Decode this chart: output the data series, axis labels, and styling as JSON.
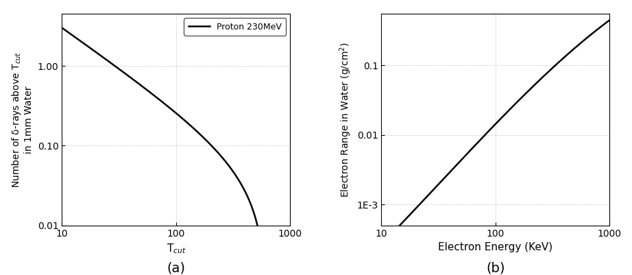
{
  "panel_a": {
    "xlabel": "T$_{cut}$",
    "ylabel": "Number of δ-rays above T$_{cut}$\nin 1mm Water",
    "legend_label": "Proton 230MeV",
    "xlim": [
      10,
      1000
    ],
    "ylim": [
      0.01,
      4.5
    ],
    "grid_color": "#aaaaaa",
    "line_color": "#000000",
    "line_width": 1.8,
    "caption": "(a)",
    "T_max_keV": 500.0,
    "C": 24.5
  },
  "panel_b": {
    "xlabel": "Electron Energy (KeV)",
    "ylabel": "Electron Range in Water (g/cm$^2$)",
    "xlim": [
      10,
      1000
    ],
    "ylim": [
      0.0005,
      0.55
    ],
    "grid_color": "#aaaaaa",
    "line_color": "#000000",
    "line_width": 1.8,
    "caption": "(b)"
  },
  "fig_width": 9.22,
  "fig_height": 4.01,
  "dpi": 100
}
